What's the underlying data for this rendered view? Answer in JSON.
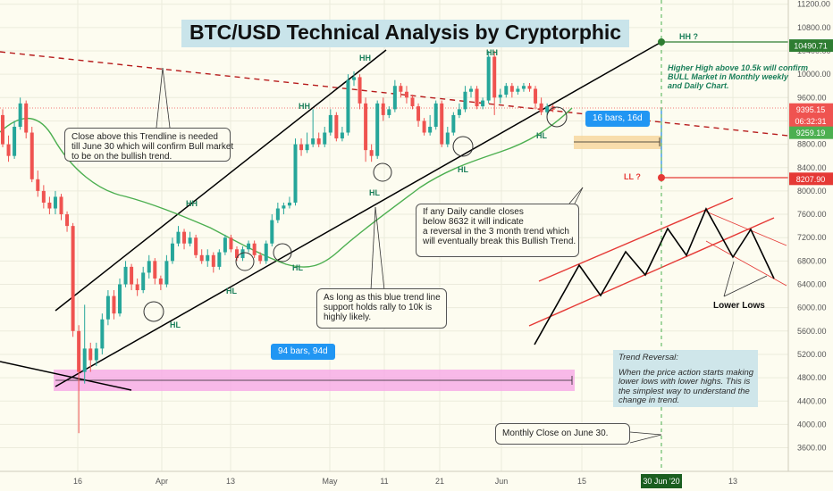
{
  "title": "BTC/USD Technical Analysis by Cryptorphic",
  "colors": {
    "up": "#26a69a",
    "down": "#ef5350",
    "background": "#fdfcf0",
    "ma": "#4caf50",
    "trendline": "#000000",
    "resistance": "#b71c1c",
    "hh_level": "#2e7d32",
    "ll_level": "#e53935",
    "highlight_pink": "#f6a3e6",
    "highlight_orange": "#f7d7a0",
    "pill": "#2196f3"
  },
  "chart_data": {
    "type": "candlestick",
    "ylim": [
      3200,
      11100
    ],
    "y_ticks": [
      3600,
      4000,
      4400,
      4800,
      5200,
      5600,
      6000,
      6400,
      6800,
      7200,
      7600,
      8000,
      8400,
      8800,
      9200,
      9600,
      10000,
      10400,
      10800,
      11200
    ],
    "x_ticks": [
      "16",
      "Apr",
      "13",
      "May",
      "11",
      "21",
      "Jun",
      "15",
      "30 Jun '20",
      "13"
    ],
    "price_badges": [
      {
        "label": "10490.71",
        "value": 10490.71,
        "color": "#2e7d32"
      },
      {
        "label": "9395.15",
        "value": 9395.15,
        "color": "#ef5350"
      },
      {
        "label": "06:32:31",
        "value": 9250,
        "color": "#ef5350"
      },
      {
        "label": "9259.19",
        "value": 9259.19,
        "color": "#4caf50"
      },
      {
        "label": "8207.90",
        "value": 8207.9,
        "color": "#e53935"
      }
    ],
    "candles_approx": [
      [
        0,
        9300,
        8800,
        9400,
        8750
      ],
      [
        1,
        8800,
        8600,
        8950,
        8500
      ],
      [
        2,
        8600,
        9100,
        9200,
        8550
      ],
      [
        3,
        9100,
        9500,
        9600,
        9050
      ],
      [
        4,
        9500,
        9000,
        9550,
        8900
      ],
      [
        5,
        9000,
        8200,
        9100,
        8150
      ],
      [
        6,
        8200,
        8000,
        8350,
        7900
      ],
      [
        7,
        8000,
        7800,
        8100,
        7700
      ],
      [
        8,
        7800,
        7700,
        7900,
        7600
      ],
      [
        9,
        7700,
        7900,
        8000,
        7600
      ],
      [
        10,
        7900,
        7600,
        7950,
        7500
      ],
      [
        11,
        7600,
        7400,
        7650,
        7300
      ],
      [
        12,
        7400,
        5600,
        7450,
        5500
      ],
      [
        13,
        5600,
        4900,
        5700,
        3850
      ],
      [
        14,
        4900,
        5300,
        6050,
        4700
      ],
      [
        15,
        5300,
        5100,
        5400,
        4900
      ],
      [
        16,
        5100,
        5300,
        5400,
        5000
      ],
      [
        17,
        5300,
        5800,
        5900,
        5200
      ],
      [
        18,
        5800,
        6200,
        6300,
        5700
      ],
      [
        19,
        6200,
        5900,
        6300,
        5800
      ],
      [
        20,
        5900,
        6400,
        6500,
        5850
      ],
      [
        21,
        6400,
        6700,
        6800,
        6350
      ],
      [
        22,
        6700,
        6400,
        6750,
        6300
      ],
      [
        23,
        6400,
        6300,
        6500,
        6200
      ],
      [
        24,
        6300,
        6600,
        6700,
        6250
      ],
      [
        25,
        6600,
        6800,
        6900,
        6500
      ],
      [
        26,
        6800,
        6500,
        6850,
        6400
      ],
      [
        27,
        6500,
        6400,
        6550,
        6300
      ],
      [
        28,
        6400,
        6800,
        6900,
        6350
      ],
      [
        29,
        6800,
        7100,
        7200,
        6750
      ],
      [
        30,
        7100,
        7300,
        7400,
        7050
      ],
      [
        31,
        7300,
        7100,
        7350,
        7000
      ],
      [
        32,
        7100,
        7200,
        7300,
        7050
      ],
      [
        33,
        7200,
        6900,
        7250,
        6850
      ],
      [
        34,
        6900,
        6800,
        7000,
        6750
      ],
      [
        35,
        6800,
        6900,
        7000,
        6700
      ],
      [
        36,
        6900,
        6700,
        6950,
        6600
      ],
      [
        37,
        6700,
        6950,
        7000,
        6650
      ],
      [
        38,
        6950,
        7200,
        7250,
        6900
      ],
      [
        39,
        7200,
        7000,
        7250,
        6950
      ],
      [
        40,
        7000,
        6850,
        7050,
        6800
      ],
      [
        41,
        6850,
        7000,
        7050,
        6800
      ],
      [
        42,
        7000,
        7100,
        7150,
        6950
      ],
      [
        43,
        7100,
        6900,
        7150,
        6850
      ],
      [
        44,
        6900,
        6800,
        6950,
        6750
      ],
      [
        45,
        6800,
        7100,
        7150,
        6750
      ],
      [
        46,
        7100,
        7500,
        7600,
        7050
      ],
      [
        47,
        7500,
        7700,
        7800,
        7450
      ],
      [
        48,
        7700,
        7750,
        7800,
        7600
      ],
      [
        49,
        7750,
        7800,
        7900,
        7700
      ],
      [
        50,
        7800,
        8800,
        8900,
        7750
      ],
      [
        51,
        8800,
        8700,
        8900,
        8600
      ],
      [
        52,
        8700,
        8800,
        9000,
        8650
      ],
      [
        53,
        8800,
        8900,
        9400,
        8750
      ],
      [
        54,
        8900,
        8800,
        9000,
        8750
      ],
      [
        55,
        8800,
        9000,
        9100,
        8750
      ],
      [
        56,
        9000,
        9300,
        9400,
        8950
      ],
      [
        57,
        9300,
        8900,
        9350,
        8850
      ],
      [
        58,
        8900,
        9000,
        9100,
        8850
      ],
      [
        59,
        9000,
        9900,
        10000,
        8950
      ],
      [
        60,
        9900,
        9950,
        10050,
        9800
      ],
      [
        61,
        9950,
        9500,
        10000,
        9400
      ],
      [
        62,
        9500,
        8700,
        9600,
        8500
      ],
      [
        63,
        8700,
        8600,
        8800,
        8500
      ],
      [
        64,
        8600,
        9500,
        9550,
        8550
      ],
      [
        65,
        9500,
        9300,
        9600,
        9200
      ],
      [
        66,
        9300,
        9400,
        9450,
        9250
      ],
      [
        67,
        9400,
        9800,
        9900,
        9350
      ],
      [
        68,
        9800,
        9700,
        9850,
        9600
      ],
      [
        69,
        9700,
        9600,
        9800,
        9500
      ],
      [
        70,
        9600,
        9450,
        9650,
        9400
      ],
      [
        71,
        9450,
        9200,
        9500,
        9100
      ],
      [
        72,
        9200,
        9000,
        9250,
        8950
      ],
      [
        73,
        9000,
        9100,
        9300,
        8950
      ],
      [
        74,
        9100,
        9500,
        9550,
        9050
      ],
      [
        75,
        9500,
        8800,
        9550,
        8750
      ],
      [
        76,
        8800,
        9000,
        9100,
        8750
      ],
      [
        77,
        9000,
        9300,
        9350,
        8950
      ],
      [
        78,
        9300,
        9400,
        9500,
        9250
      ],
      [
        79,
        9400,
        9700,
        9800,
        9350
      ],
      [
        80,
        9700,
        9750,
        9800,
        9600
      ],
      [
        81,
        9750,
        9450,
        9800,
        9400
      ],
      [
        82,
        9450,
        9550,
        9600,
        9400
      ],
      [
        83,
        9550,
        10300,
        10400,
        9500
      ],
      [
        84,
        10300,
        9600,
        10400,
        9300
      ],
      [
        85,
        9600,
        9650,
        9750,
        9500
      ],
      [
        86,
        9650,
        9800,
        9850,
        9600
      ],
      [
        87,
        9800,
        9700,
        9850,
        9600
      ],
      [
        88,
        9700,
        9750,
        9800,
        9650
      ],
      [
        89,
        9750,
        9800,
        9850,
        9700
      ],
      [
        90,
        9800,
        9750,
        9850,
        9700
      ],
      [
        91,
        9750,
        9500,
        9800,
        9400
      ],
      [
        92,
        9500,
        9350,
        9600,
        9300
      ],
      [
        93,
        9350,
        9450,
        9500,
        9300
      ],
      [
        94,
        9450,
        9395,
        9480,
        9350
      ]
    ],
    "annotations": {
      "trendline_note": [
        "Close above this Trendline is needed",
        "till June 30 which will confirm Bull market",
        "to be on the bullish trend."
      ],
      "daily_note": [
        "If any Daily candle closes",
        "below 8632 it will indicate",
        "a reversal in the 3 month trend which",
        "will eventually break this Bullish Trend."
      ],
      "support_note": [
        "As long as this blue trend line",
        "support holds rally to 10k is",
        "highly likely."
      ],
      "monthly_note": "Monthly Close on June 30.",
      "higher_high_note": [
        "Higher High above 10.5k will confirm",
        "BULL Market in Monthly weekly",
        "and Daily Chart."
      ],
      "trend_reversal_title": "Trend Reversal:",
      "trend_reversal_body": [
        "When the price action starts making",
        "lower lows with lower highs. This is",
        "the simplest way to understand the",
        "change in trend."
      ],
      "lower_lows": "Lower Lows",
      "range_short": "16 bars, 16d",
      "range_long": "94 bars, 94d",
      "hh_question": "HH ?",
      "ll_question": "LL ?",
      "labels": [
        "HH",
        "HH",
        "HH",
        "HH",
        "HL",
        "HL",
        "HL",
        "HL",
        "HL",
        "HL"
      ]
    }
  }
}
